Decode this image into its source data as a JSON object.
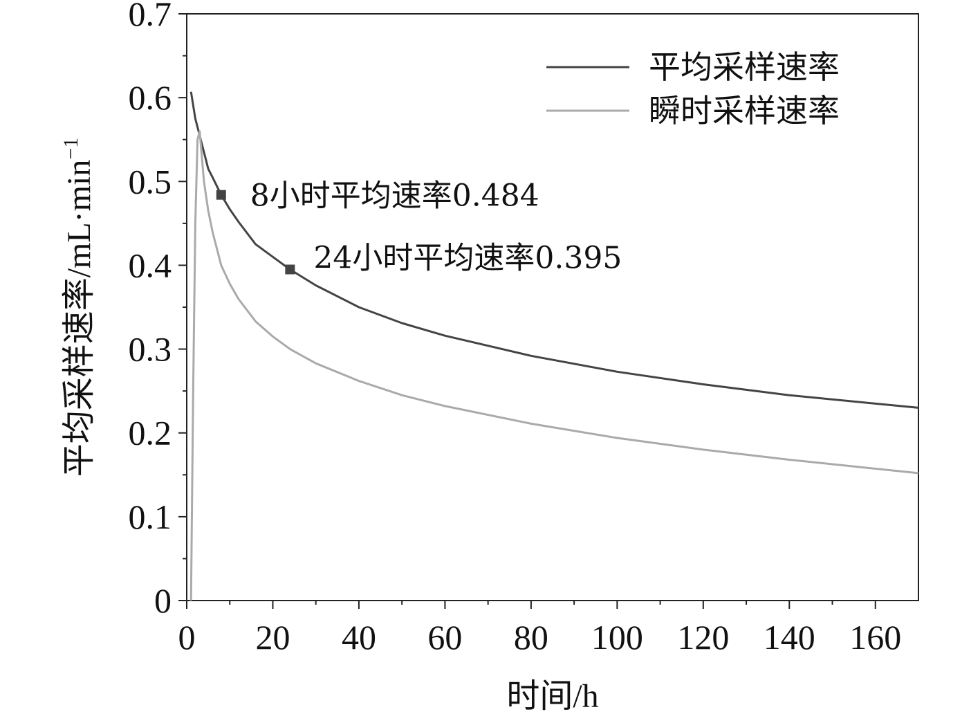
{
  "chart_data": {
    "type": "line",
    "title": "",
    "xlabel": "时间/h",
    "ylabel": "平均采样速率/mL·min",
    "ylabel_superscript": "−1",
    "xlim": [
      0,
      170
    ],
    "ylim": [
      0,
      0.7
    ],
    "x_ticks": [
      0,
      20,
      40,
      60,
      80,
      100,
      120,
      140,
      160
    ],
    "y_ticks": [
      0,
      0.1,
      0.2,
      0.3,
      0.4,
      0.5,
      0.6,
      0.7
    ],
    "x_tick_labels": [
      "0",
      "20",
      "40",
      "60",
      "80",
      "100",
      "120",
      "140",
      "160"
    ],
    "y_tick_labels": [
      "0",
      "0.1",
      "0.2",
      "0.3",
      "0.4",
      "0.5",
      "0.6",
      "0.7"
    ],
    "grid": false,
    "legend_position": "top-right",
    "series": [
      {
        "name": "平均采样速率",
        "color": "#444444",
        "x": [
          1,
          2,
          3,
          4,
          5,
          6,
          8,
          10,
          12,
          16,
          20,
          24,
          30,
          40,
          50,
          60,
          80,
          100,
          120,
          140,
          170
        ],
        "y": [
          0.607,
          0.575,
          0.555,
          0.535,
          0.515,
          0.505,
          0.484,
          0.467,
          0.452,
          0.425,
          0.41,
          0.395,
          0.376,
          0.35,
          0.331,
          0.316,
          0.292,
          0.273,
          0.258,
          0.245,
          0.23
        ]
      },
      {
        "name": "瞬时采样速率",
        "color": "#aaaaaa",
        "x": [
          1,
          1.5,
          2,
          2.5,
          3,
          4,
          5,
          6,
          8,
          10,
          12,
          16,
          20,
          24,
          30,
          40,
          50,
          60,
          80,
          100,
          120,
          140,
          170
        ],
        "y": [
          0,
          0.25,
          0.45,
          0.55,
          0.56,
          0.5,
          0.465,
          0.44,
          0.4,
          0.378,
          0.36,
          0.333,
          0.315,
          0.3,
          0.283,
          0.262,
          0.245,
          0.232,
          0.211,
          0.194,
          0.18,
          0.168,
          0.152
        ]
      }
    ],
    "annotations": [
      {
        "text": "8小时平均速率0.484",
        "x": 8,
        "y": 0.484
      },
      {
        "text": "24小时平均速率0.395",
        "x": 24,
        "y": 0.395
      }
    ]
  }
}
